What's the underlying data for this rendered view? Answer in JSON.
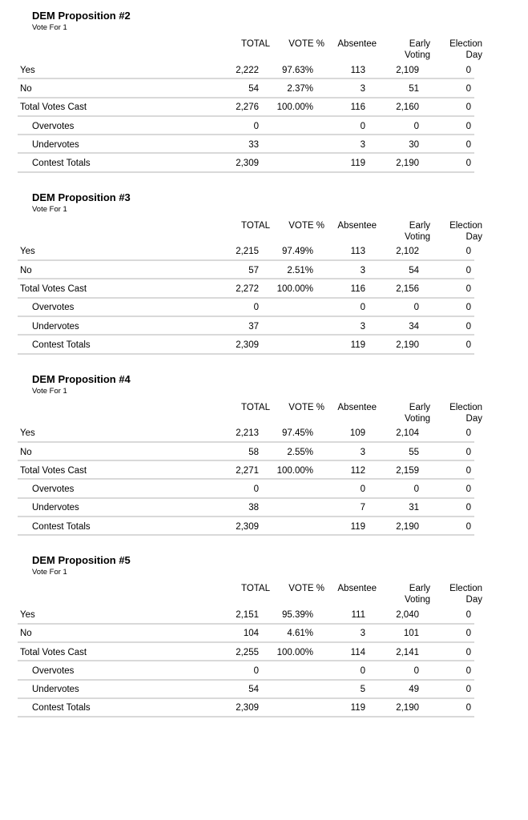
{
  "colors": {
    "background": "#ffffff",
    "text": "#000000",
    "divider": "#d9d9d9"
  },
  "report": {
    "column_headers": [
      "TOTAL",
      "VOTE %",
      "Absentee",
      "Early\nVoting",
      "Election\nDay"
    ],
    "sections": [
      {
        "title": "DEM Proposition #2",
        "subtitle": "Vote For 1",
        "rows": [
          {
            "label": "Yes",
            "indent": false,
            "total": "2,222",
            "vote_pct": "97.63%",
            "absentee": "113",
            "early_voting": "2,109",
            "election_day": "0"
          },
          {
            "label": "No",
            "indent": false,
            "total": "54",
            "vote_pct": "2.37%",
            "absentee": "3",
            "early_voting": "51",
            "election_day": "0"
          },
          {
            "label": "Total Votes Cast",
            "indent": false,
            "total": "2,276",
            "vote_pct": "100.00%",
            "absentee": "116",
            "early_voting": "2,160",
            "election_day": "0"
          },
          {
            "label": "Overvotes",
            "indent": true,
            "total": "0",
            "vote_pct": "",
            "absentee": "0",
            "early_voting": "0",
            "election_day": "0"
          },
          {
            "label": "Undervotes",
            "indent": true,
            "total": "33",
            "vote_pct": "",
            "absentee": "3",
            "early_voting": "30",
            "election_day": "0"
          },
          {
            "label": "Contest Totals",
            "indent": true,
            "total": "2,309",
            "vote_pct": "",
            "absentee": "119",
            "early_voting": "2,190",
            "election_day": "0"
          }
        ]
      },
      {
        "title": "DEM Proposition #3",
        "subtitle": "Vote For 1",
        "rows": [
          {
            "label": "Yes",
            "indent": false,
            "total": "2,215",
            "vote_pct": "97.49%",
            "absentee": "113",
            "early_voting": "2,102",
            "election_day": "0"
          },
          {
            "label": "No",
            "indent": false,
            "total": "57",
            "vote_pct": "2.51%",
            "absentee": "3",
            "early_voting": "54",
            "election_day": "0"
          },
          {
            "label": "Total Votes Cast",
            "indent": false,
            "total": "2,272",
            "vote_pct": "100.00%",
            "absentee": "116",
            "early_voting": "2,156",
            "election_day": "0"
          },
          {
            "label": "Overvotes",
            "indent": true,
            "total": "0",
            "vote_pct": "",
            "absentee": "0",
            "early_voting": "0",
            "election_day": "0"
          },
          {
            "label": "Undervotes",
            "indent": true,
            "total": "37",
            "vote_pct": "",
            "absentee": "3",
            "early_voting": "34",
            "election_day": "0"
          },
          {
            "label": "Contest Totals",
            "indent": true,
            "total": "2,309",
            "vote_pct": "",
            "absentee": "119",
            "early_voting": "2,190",
            "election_day": "0"
          }
        ]
      },
      {
        "title": "DEM Proposition #4",
        "subtitle": "Vote For 1",
        "rows": [
          {
            "label": "Yes",
            "indent": false,
            "total": "2,213",
            "vote_pct": "97.45%",
            "absentee": "109",
            "early_voting": "2,104",
            "election_day": "0"
          },
          {
            "label": "No",
            "indent": false,
            "total": "58",
            "vote_pct": "2.55%",
            "absentee": "3",
            "early_voting": "55",
            "election_day": "0"
          },
          {
            "label": "Total Votes Cast",
            "indent": false,
            "total": "2,271",
            "vote_pct": "100.00%",
            "absentee": "112",
            "early_voting": "2,159",
            "election_day": "0"
          },
          {
            "label": "Overvotes",
            "indent": true,
            "total": "0",
            "vote_pct": "",
            "absentee": "0",
            "early_voting": "0",
            "election_day": "0"
          },
          {
            "label": "Undervotes",
            "indent": true,
            "total": "38",
            "vote_pct": "",
            "absentee": "7",
            "early_voting": "31",
            "election_day": "0"
          },
          {
            "label": "Contest Totals",
            "indent": true,
            "total": "2,309",
            "vote_pct": "",
            "absentee": "119",
            "early_voting": "2,190",
            "election_day": "0"
          }
        ]
      },
      {
        "title": "DEM Proposition #5",
        "subtitle": "Vote For 1",
        "rows": [
          {
            "label": "Yes",
            "indent": false,
            "total": "2,151",
            "vote_pct": "95.39%",
            "absentee": "111",
            "early_voting": "2,040",
            "election_day": "0"
          },
          {
            "label": "No",
            "indent": false,
            "total": "104",
            "vote_pct": "4.61%",
            "absentee": "3",
            "early_voting": "101",
            "election_day": "0"
          },
          {
            "label": "Total Votes Cast",
            "indent": false,
            "total": "2,255",
            "vote_pct": "100.00%",
            "absentee": "114",
            "early_voting": "2,141",
            "election_day": "0"
          },
          {
            "label": "Overvotes",
            "indent": true,
            "total": "0",
            "vote_pct": "",
            "absentee": "0",
            "early_voting": "0",
            "election_day": "0"
          },
          {
            "label": "Undervotes",
            "indent": true,
            "total": "54",
            "vote_pct": "",
            "absentee": "5",
            "early_voting": "49",
            "election_day": "0"
          },
          {
            "label": "Contest Totals",
            "indent": true,
            "total": "2,309",
            "vote_pct": "",
            "absentee": "119",
            "early_voting": "2,190",
            "election_day": "0"
          }
        ]
      }
    ]
  }
}
